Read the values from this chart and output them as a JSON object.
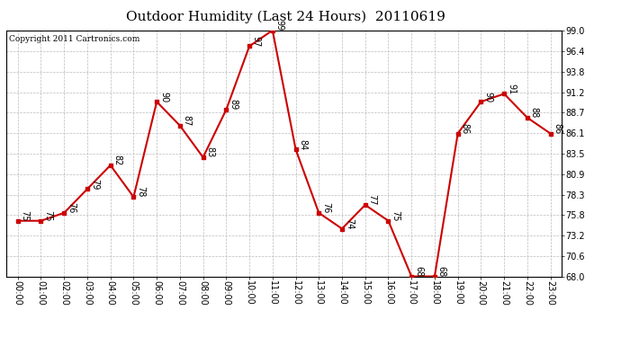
{
  "title": "Outdoor Humidity (Last 24 Hours)  20110619",
  "copyright": "Copyright 2011 Cartronics.com",
  "x_labels": [
    "00:00",
    "01:00",
    "02:00",
    "03:00",
    "04:00",
    "05:00",
    "06:00",
    "07:00",
    "08:00",
    "09:00",
    "10:00",
    "11:00",
    "12:00",
    "13:00",
    "14:00",
    "15:00",
    "16:00",
    "17:00",
    "18:00",
    "19:00",
    "20:00",
    "21:00",
    "22:00",
    "23:00"
  ],
  "y_values": [
    75,
    75,
    76,
    79,
    82,
    78,
    90,
    87,
    83,
    89,
    97,
    99,
    84,
    76,
    74,
    77,
    75,
    68,
    68,
    86,
    90,
    91,
    88,
    86
  ],
  "y_ticks": [
    99.0,
    96.4,
    93.8,
    91.2,
    88.7,
    86.1,
    83.5,
    80.9,
    78.3,
    75.8,
    73.2,
    70.6,
    68.0
  ],
  "ylim": [
    68.0,
    99.0
  ],
  "line_color": "#cc0000",
  "marker_color": "#cc0000",
  "bg_color": "#ffffff",
  "grid_color": "#bbbbbb",
  "title_fontsize": 11,
  "tick_fontsize": 7,
  "annot_fontsize": 7,
  "copyright_fontsize": 6.5
}
